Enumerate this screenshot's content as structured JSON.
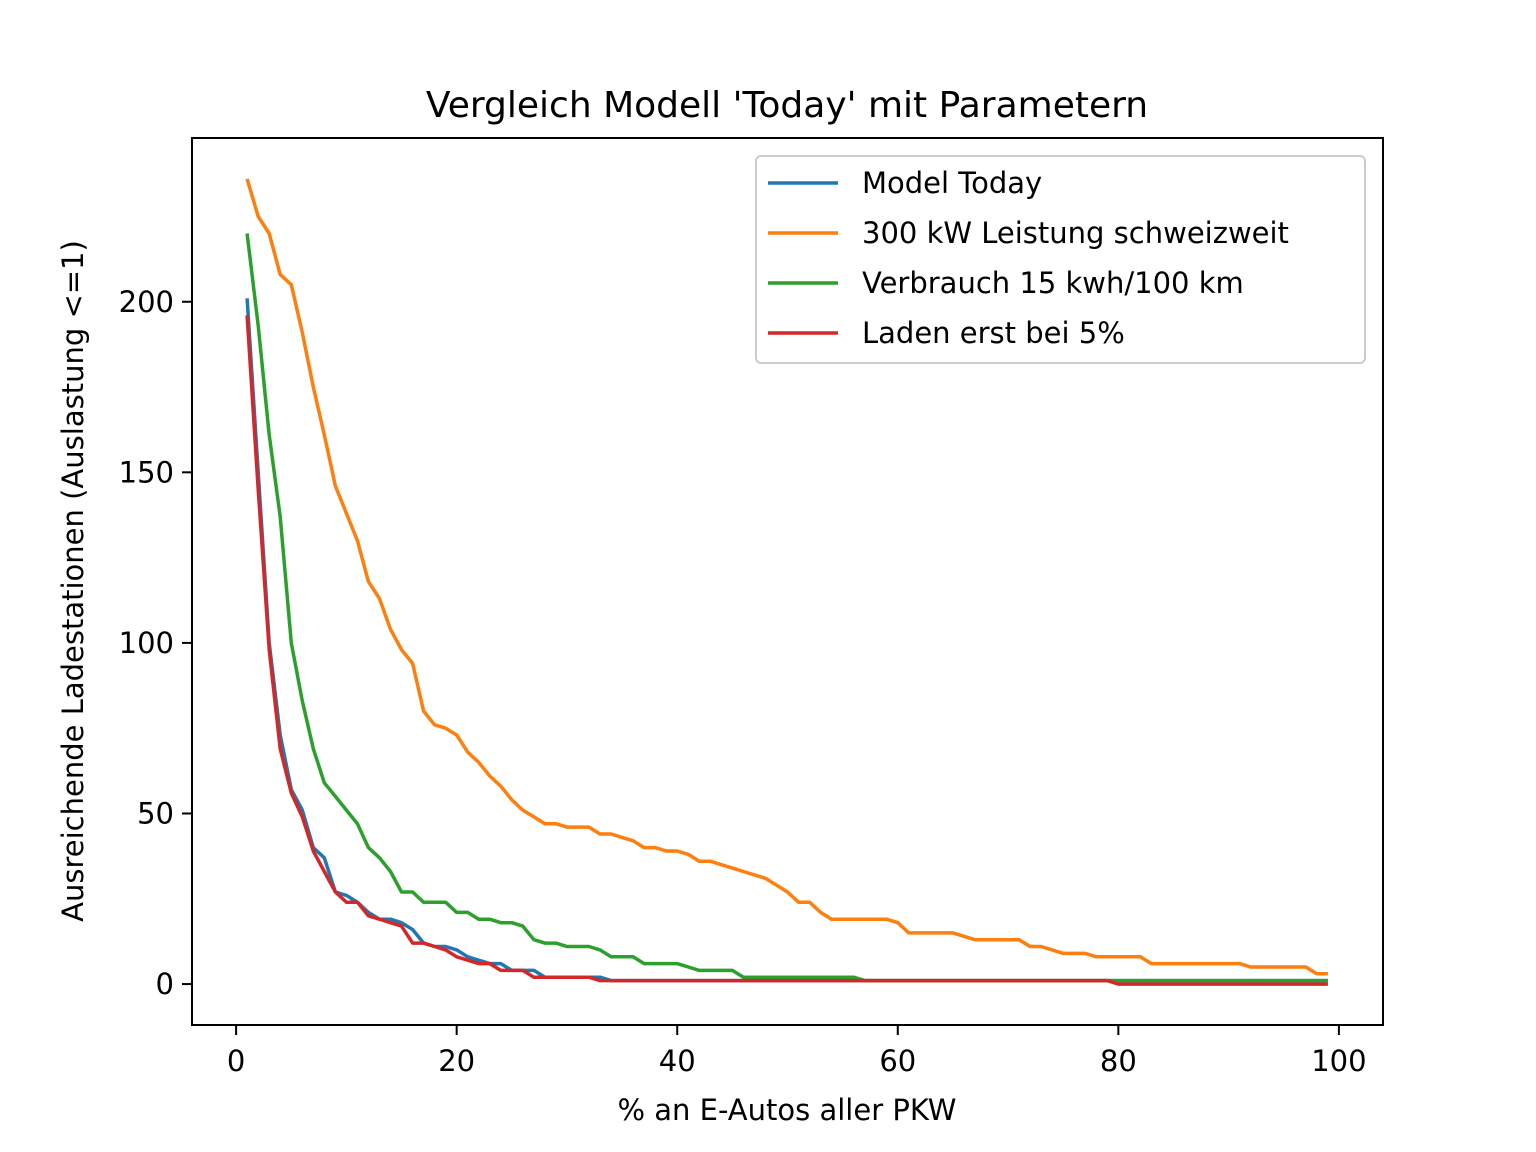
{
  "chart_data": {
    "type": "line",
    "title": "Vergleich Modell 'Today' mit Parametern",
    "xlabel": "% an E-Autos aller PKW",
    "ylabel": "Ausreichende Ladestationen (Auslastung <=1)",
    "xlim": [
      -4,
      104
    ],
    "ylim": [
      -12,
      248
    ],
    "xticks": [
      0,
      20,
      40,
      60,
      80,
      100
    ],
    "yticks": [
      0,
      50,
      100,
      150,
      200
    ],
    "grid": false,
    "legend_position": "top-right",
    "series": [
      {
        "name": "Model Today",
        "color": "#1f77b4",
        "points": [
          [
            1,
            201
          ],
          [
            2,
            150
          ],
          [
            3,
            100
          ],
          [
            4,
            73
          ],
          [
            5,
            57
          ],
          [
            6,
            51
          ],
          [
            7,
            40
          ],
          [
            8,
            37
          ],
          [
            9,
            27
          ],
          [
            10,
            26
          ],
          [
            11,
            24
          ],
          [
            12,
            21
          ],
          [
            13,
            19
          ],
          [
            14,
            19
          ],
          [
            15,
            18
          ],
          [
            16,
            16
          ],
          [
            17,
            12
          ],
          [
            18,
            11
          ],
          [
            19,
            11
          ],
          [
            20,
            10
          ],
          [
            21,
            8
          ],
          [
            22,
            7
          ],
          [
            23,
            6
          ],
          [
            24,
            6
          ],
          [
            25,
            4
          ],
          [
            26,
            4
          ],
          [
            27,
            4
          ],
          [
            28,
            2
          ],
          [
            29,
            2
          ],
          [
            30,
            2
          ],
          [
            31,
            2
          ],
          [
            32,
            2
          ],
          [
            33,
            2
          ],
          [
            34,
            1
          ],
          [
            40,
            1
          ],
          [
            50,
            1
          ],
          [
            60,
            1
          ],
          [
            70,
            1
          ],
          [
            80,
            1
          ],
          [
            90,
            1
          ],
          [
            99,
            1
          ]
        ]
      },
      {
        "name": "300 kW Leistung schweizweit",
        "color": "#ff7f0e",
        "points": [
          [
            1,
            236
          ],
          [
            2,
            225
          ],
          [
            3,
            220
          ],
          [
            4,
            208
          ],
          [
            5,
            205
          ],
          [
            6,
            191
          ],
          [
            7,
            175
          ],
          [
            8,
            161
          ],
          [
            9,
            146
          ],
          [
            10,
            138
          ],
          [
            11,
            130
          ],
          [
            12,
            118
          ],
          [
            13,
            113
          ],
          [
            14,
            104
          ],
          [
            15,
            98
          ],
          [
            16,
            94
          ],
          [
            17,
            80
          ],
          [
            18,
            76
          ],
          [
            19,
            75
          ],
          [
            20,
            73
          ],
          [
            21,
            68
          ],
          [
            22,
            65
          ],
          [
            23,
            61
          ],
          [
            24,
            58
          ],
          [
            25,
            54
          ],
          [
            26,
            51
          ],
          [
            27,
            49
          ],
          [
            28,
            47
          ],
          [
            29,
            47
          ],
          [
            30,
            46
          ],
          [
            31,
            46
          ],
          [
            32,
            46
          ],
          [
            33,
            44
          ],
          [
            34,
            44
          ],
          [
            35,
            43
          ],
          [
            36,
            42
          ],
          [
            37,
            40
          ],
          [
            38,
            40
          ],
          [
            39,
            39
          ],
          [
            40,
            39
          ],
          [
            41,
            38
          ],
          [
            42,
            36
          ],
          [
            43,
            36
          ],
          [
            44,
            35
          ],
          [
            45,
            34
          ],
          [
            46,
            33
          ],
          [
            47,
            32
          ],
          [
            48,
            31
          ],
          [
            49,
            29
          ],
          [
            50,
            27
          ],
          [
            51,
            24
          ],
          [
            52,
            24
          ],
          [
            53,
            21
          ],
          [
            54,
            19
          ],
          [
            55,
            19
          ],
          [
            56,
            19
          ],
          [
            57,
            19
          ],
          [
            58,
            19
          ],
          [
            59,
            19
          ],
          [
            60,
            18
          ],
          [
            61,
            15
          ],
          [
            62,
            15
          ],
          [
            63,
            15
          ],
          [
            64,
            15
          ],
          [
            65,
            15
          ],
          [
            66,
            14
          ],
          [
            67,
            13
          ],
          [
            68,
            13
          ],
          [
            69,
            13
          ],
          [
            70,
            13
          ],
          [
            71,
            13
          ],
          [
            72,
            11
          ],
          [
            73,
            11
          ],
          [
            74,
            10
          ],
          [
            75,
            9
          ],
          [
            76,
            9
          ],
          [
            77,
            9
          ],
          [
            78,
            8
          ],
          [
            79,
            8
          ],
          [
            80,
            8
          ],
          [
            81,
            8
          ],
          [
            82,
            8
          ],
          [
            83,
            6
          ],
          [
            84,
            6
          ],
          [
            85,
            6
          ],
          [
            86,
            6
          ],
          [
            87,
            6
          ],
          [
            88,
            6
          ],
          [
            89,
            6
          ],
          [
            90,
            6
          ],
          [
            91,
            6
          ],
          [
            92,
            5
          ],
          [
            93,
            5
          ],
          [
            94,
            5
          ],
          [
            95,
            5
          ],
          [
            96,
            5
          ],
          [
            97,
            5
          ],
          [
            98,
            3
          ],
          [
            99,
            3
          ]
        ]
      },
      {
        "name": "Verbrauch 15 kwh/100 km",
        "color": "#2ca02c",
        "points": [
          [
            1,
            220
          ],
          [
            2,
            193
          ],
          [
            3,
            161
          ],
          [
            4,
            137
          ],
          [
            5,
            100
          ],
          [
            6,
            83
          ],
          [
            7,
            69
          ],
          [
            8,
            59
          ],
          [
            9,
            55
          ],
          [
            10,
            51
          ],
          [
            11,
            47
          ],
          [
            12,
            40
          ],
          [
            13,
            37
          ],
          [
            14,
            33
          ],
          [
            15,
            27
          ],
          [
            16,
            27
          ],
          [
            17,
            24
          ],
          [
            18,
            24
          ],
          [
            19,
            24
          ],
          [
            20,
            21
          ],
          [
            21,
            21
          ],
          [
            22,
            19
          ],
          [
            23,
            19
          ],
          [
            24,
            18
          ],
          [
            25,
            18
          ],
          [
            26,
            17
          ],
          [
            27,
            13
          ],
          [
            28,
            12
          ],
          [
            29,
            12
          ],
          [
            30,
            11
          ],
          [
            31,
            11
          ],
          [
            32,
            11
          ],
          [
            33,
            10
          ],
          [
            34,
            8
          ],
          [
            35,
            8
          ],
          [
            36,
            8
          ],
          [
            37,
            6
          ],
          [
            38,
            6
          ],
          [
            39,
            6
          ],
          [
            40,
            6
          ],
          [
            41,
            5
          ],
          [
            42,
            4
          ],
          [
            43,
            4
          ],
          [
            44,
            4
          ],
          [
            45,
            4
          ],
          [
            46,
            2
          ],
          [
            47,
            2
          ],
          [
            50,
            2
          ],
          [
            55,
            2
          ],
          [
            56,
            2
          ],
          [
            57,
            1
          ],
          [
            60,
            1
          ],
          [
            70,
            1
          ],
          [
            80,
            1
          ],
          [
            90,
            1
          ],
          [
            99,
            1
          ]
        ]
      },
      {
        "name": "Laden erst bei 5%",
        "color": "#d62728",
        "points": [
          [
            1,
            196
          ],
          [
            2,
            145
          ],
          [
            3,
            98
          ],
          [
            4,
            69
          ],
          [
            5,
            56
          ],
          [
            6,
            49
          ],
          [
            7,
            39
          ],
          [
            8,
            33
          ],
          [
            9,
            27
          ],
          [
            10,
            24
          ],
          [
            11,
            24
          ],
          [
            12,
            20
          ],
          [
            13,
            19
          ],
          [
            14,
            18
          ],
          [
            15,
            17
          ],
          [
            16,
            12
          ],
          [
            17,
            12
          ],
          [
            18,
            11
          ],
          [
            19,
            10
          ],
          [
            20,
            8
          ],
          [
            21,
            7
          ],
          [
            22,
            6
          ],
          [
            23,
            6
          ],
          [
            24,
            4
          ],
          [
            25,
            4
          ],
          [
            26,
            4
          ],
          [
            27,
            2
          ],
          [
            28,
            2
          ],
          [
            29,
            2
          ],
          [
            30,
            2
          ],
          [
            31,
            2
          ],
          [
            32,
            2
          ],
          [
            33,
            1
          ],
          [
            40,
            1
          ],
          [
            50,
            1
          ],
          [
            60,
            1
          ],
          [
            70,
            1
          ],
          [
            79,
            1
          ],
          [
            80,
            0
          ],
          [
            90,
            0
          ],
          [
            99,
            0
          ]
        ]
      }
    ]
  }
}
